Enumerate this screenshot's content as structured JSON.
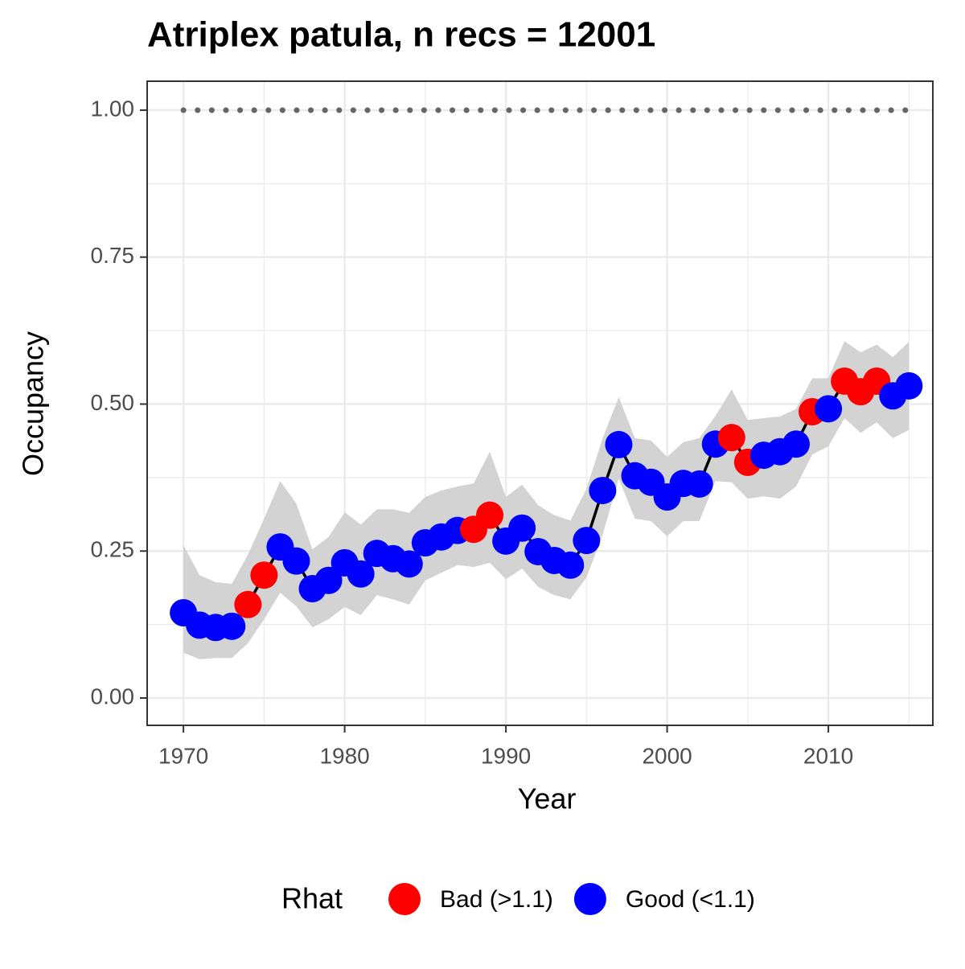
{
  "chart_data": {
    "type": "line",
    "title": "Atriplex patula, n recs = 12001",
    "x_label": "Year",
    "y_label": "Occupancy",
    "x": [
      1970,
      1971,
      1972,
      1973,
      1974,
      1975,
      1976,
      1977,
      1978,
      1979,
      1980,
      1981,
      1982,
      1983,
      1984,
      1985,
      1986,
      1987,
      1988,
      1989,
      1990,
      1991,
      1992,
      1993,
      1994,
      1995,
      1996,
      1997,
      1998,
      1999,
      2000,
      2001,
      2002,
      2003,
      2004,
      2005,
      2006,
      2007,
      2008,
      2009,
      2010,
      2011,
      2012,
      2013,
      2014,
      2015
    ],
    "values": [
      0.145,
      0.124,
      0.12,
      0.122,
      0.159,
      0.209,
      0.257,
      0.233,
      0.186,
      0.2,
      0.23,
      0.211,
      0.246,
      0.237,
      0.228,
      0.264,
      0.274,
      0.285,
      0.287,
      0.311,
      0.267,
      0.289,
      0.249,
      0.234,
      0.226,
      0.268,
      0.353,
      0.431,
      0.378,
      0.367,
      0.342,
      0.365,
      0.364,
      0.432,
      0.443,
      0.401,
      0.413,
      0.419,
      0.432,
      0.487,
      0.492,
      0.539,
      0.521,
      0.539,
      0.514,
      0.531
    ],
    "upper": [
      0.26,
      0.209,
      0.197,
      0.194,
      0.244,
      0.305,
      0.369,
      0.331,
      0.253,
      0.274,
      0.316,
      0.295,
      0.321,
      0.321,
      0.315,
      0.342,
      0.353,
      0.36,
      0.365,
      0.419,
      0.342,
      0.363,
      0.328,
      0.311,
      0.302,
      0.356,
      0.442,
      0.512,
      0.442,
      0.438,
      0.41,
      0.435,
      0.442,
      0.48,
      0.525,
      0.473,
      0.476,
      0.479,
      0.492,
      0.544,
      0.544,
      0.607,
      0.588,
      0.601,
      0.58,
      0.606
    ],
    "lower": [
      0.077,
      0.066,
      0.068,
      0.068,
      0.093,
      0.134,
      0.179,
      0.156,
      0.12,
      0.134,
      0.155,
      0.141,
      0.175,
      0.168,
      0.159,
      0.2,
      0.213,
      0.226,
      0.223,
      0.23,
      0.202,
      0.22,
      0.189,
      0.175,
      0.168,
      0.205,
      0.278,
      0.373,
      0.305,
      0.301,
      0.275,
      0.301,
      0.301,
      0.369,
      0.367,
      0.339,
      0.343,
      0.339,
      0.36,
      0.414,
      0.428,
      0.476,
      0.451,
      0.469,
      0.442,
      0.456
    ],
    "groups": [
      "Good (<1.1)",
      "Good (<1.1)",
      "Good (<1.1)",
      "Good (<1.1)",
      "Bad (>1.1)",
      "Bad (>1.1)",
      "Good (<1.1)",
      "Good (<1.1)",
      "Good (<1.1)",
      "Good (<1.1)",
      "Good (<1.1)",
      "Good (<1.1)",
      "Good (<1.1)",
      "Good (<1.1)",
      "Good (<1.1)",
      "Good (<1.1)",
      "Good (<1.1)",
      "Good (<1.1)",
      "Bad (>1.1)",
      "Bad (>1.1)",
      "Good (<1.1)",
      "Good (<1.1)",
      "Good (<1.1)",
      "Good (<1.1)",
      "Good (<1.1)",
      "Good (<1.1)",
      "Good (<1.1)",
      "Good (<1.1)",
      "Good (<1.1)",
      "Good (<1.1)",
      "Good (<1.1)",
      "Good (<1.1)",
      "Good (<1.1)",
      "Good (<1.1)",
      "Bad (>1.1)",
      "Bad (>1.1)",
      "Good (<1.1)",
      "Good (<1.1)",
      "Good (<1.1)",
      "Bad (>1.1)",
      "Good (<1.1)",
      "Bad (>1.1)",
      "Bad (>1.1)",
      "Bad (>1.1)",
      "Good (<1.1)",
      "Good (<1.1)"
    ],
    "legend_title": "Rhat",
    "series": [
      {
        "name": "Bad (>1.1)",
        "color": "#ff0000"
      },
      {
        "name": "Good (<1.1)",
        "color": "#0000ff"
      }
    ],
    "reference_line": 1,
    "line_color": "#000000",
    "band_color": "#d3d3d3",
    "xlim": [
      1967.75,
      2016.48
    ],
    "ylim": [
      -0.0465,
      1.0492
    ],
    "xticks": [
      1970,
      1980,
      1990,
      2000,
      2010
    ],
    "yticks": [
      {
        "value": 0,
        "label": "0.00"
      },
      {
        "value": 0.25,
        "label": "0.25"
      },
      {
        "value": 0.5,
        "label": "0.50"
      },
      {
        "value": 0.75,
        "label": "0.75"
      },
      {
        "value": 1,
        "label": "1.00"
      }
    ],
    "x_minor_ticks": [
      1975,
      1985,
      1995,
      2005,
      2015
    ],
    "y_minor_ticks": [
      0.125,
      0.375,
      0.625,
      0.875
    ],
    "grid": true,
    "legend_position": "bottom"
  }
}
